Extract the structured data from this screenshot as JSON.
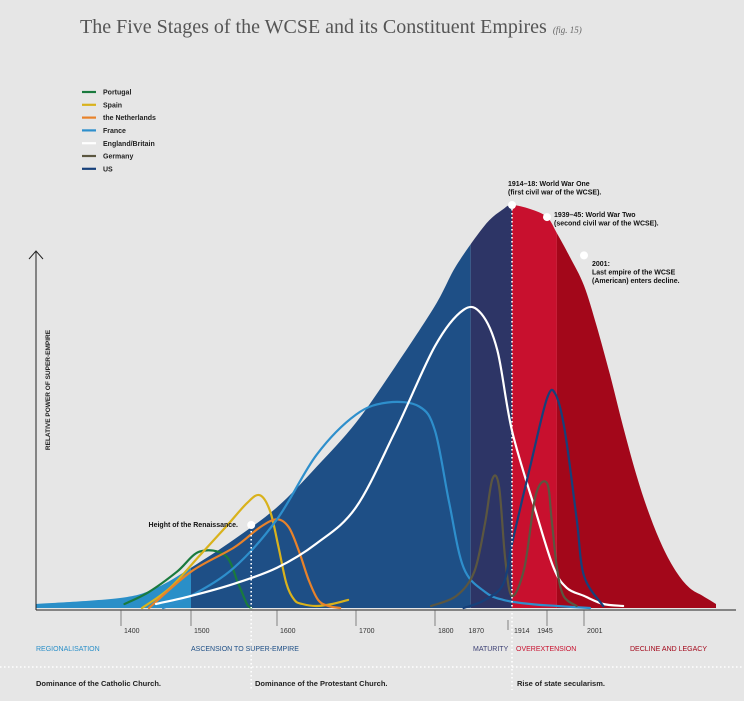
{
  "title": "The Five Stages of the WCSE and its Constituent Empires",
  "fig_ref": "(fig. 15)",
  "ylabel": "RELATIVE POWER OF SUPER-EMPIRE",
  "annotations": [
    {
      "year": 1914,
      "lines": [
        "1914–18: World War One",
        "(first civil war of the WCSE)."
      ]
    },
    {
      "year": 1945,
      "lines": [
        "1939–45: World War Two",
        "(second civil war of the WCSE)."
      ]
    },
    {
      "year": 2001,
      "lines": [
        "2001:",
        "Last empire of the WCSE",
        "(American) enters decline."
      ]
    },
    {
      "year": 1570,
      "lines": [
        "Height of the Renaissance."
      ]
    }
  ],
  "stages": [
    {
      "label": "REGIONALISATION",
      "color": "#2a8fc8"
    },
    {
      "label": "ASCENSION TO SUPER-EMPIRE",
      "color": "#1e4f86"
    },
    {
      "label": "MATURITY",
      "color": "#3b3f73"
    },
    {
      "label": "OVEREXTENSION",
      "color": "#c8102e"
    },
    {
      "label": "DECLINE AND LEGACY",
      "color": "#a3071a"
    }
  ],
  "eras": [
    "Dominance of the Catholic Church.",
    "Dominance of the Protestant Church.",
    "Rise of state secularism."
  ],
  "chart_data": {
    "type": "area",
    "title": "The Five Stages of the WCSE and its Constituent Empires",
    "ylabel": "RELATIVE POWER OF SUPER-EMPIRE",
    "x_ticks": [
      1400,
      1500,
      1600,
      1700,
      1800,
      1870,
      1914,
      1945,
      2001
    ],
    "ylim": [
      0,
      100
    ],
    "grid": false,
    "legend_placement": "top-left",
    "stage_bands": [
      {
        "label": "REGIONALISATION",
        "from": 1300,
        "to": 1500,
        "color": "#2a8fc8"
      },
      {
        "label": "ASCENSION TO SUPER-EMPIRE",
        "from": 1500,
        "to": 1850,
        "color": "#1e4f86"
      },
      {
        "label": "MATURITY",
        "from": 1850,
        "to": 1914,
        "color": "#2d3566"
      },
      {
        "label": "OVEREXTENSION",
        "from": 1914,
        "to": 1960,
        "color": "#c8102e"
      },
      {
        "label": "DECLINE AND LEGACY",
        "from": 1960,
        "to": 2200,
        "color": "#a3071a"
      }
    ],
    "wcse_curve": {
      "x": [
        1300,
        1400,
        1450,
        1500,
        1550,
        1600,
        1650,
        1700,
        1750,
        1800,
        1830,
        1870,
        1900,
        1914,
        1930,
        1945,
        1960,
        1980,
        2001,
        2020,
        2040,
        2060,
        2080,
        2100,
        2120,
        2140,
        2160,
        2180,
        2200
      ],
      "y": [
        1,
        2.5,
        5,
        10,
        17,
        25,
        35,
        46,
        60,
        75,
        85,
        95,
        99,
        100,
        99,
        97,
        93,
        87,
        80,
        70,
        58,
        45,
        33,
        23,
        15,
        9,
        5,
        3,
        1
      ]
    },
    "series": [
      {
        "name": "Portugal",
        "color": "#1a7a3e",
        "x": [
          1405,
          1440,
          1480,
          1510,
          1540,
          1555,
          1565,
          1570
        ],
        "y": [
          1,
          4,
          9,
          14,
          13,
          6,
          1,
          0
        ]
      },
      {
        "name": "Spain",
        "color": "#d9b21c",
        "x": [
          1430,
          1470,
          1510,
          1540,
          1565,
          1580,
          1592,
          1602,
          1612,
          1622,
          1632,
          1650,
          1670,
          1690
        ],
        "y": [
          0,
          5,
          13,
          20,
          26,
          28,
          24,
          15,
          6,
          2,
          1,
          0.5,
          1,
          2
        ]
      },
      {
        "name": "the Netherlands",
        "color": "#e8822a",
        "x": [
          1440,
          1500,
          1550,
          1580,
          1600,
          1615,
          1628,
          1640,
          1652,
          1665,
          1680
        ],
        "y": [
          0,
          9,
          15,
          20,
          22,
          20,
          14,
          7,
          2,
          0.5,
          0
        ]
      },
      {
        "name": "France",
        "color": "#2e8fcc",
        "x": [
          1460,
          1500,
          1550,
          1600,
          1650,
          1700,
          1740,
          1780,
          1800,
          1820,
          1840,
          1870,
          1900,
          1930,
          1960,
          2010
        ],
        "y": [
          0,
          3,
          10,
          22,
          38,
          48,
          51,
          50,
          44,
          26,
          10,
          4,
          2,
          1,
          0.5,
          0
        ]
      },
      {
        "name": "England/Britain",
        "color": "#ffffff",
        "x": [
          1450,
          1500,
          1550,
          1600,
          1650,
          1700,
          1750,
          1800,
          1840,
          1865,
          1890,
          1914,
          1935,
          1955,
          1975,
          2001,
          2030,
          2060
        ],
        "y": [
          1,
          3,
          6,
          10,
          16,
          25,
          44,
          65,
          74,
          73,
          64,
          44,
          24,
          10,
          5,
          3,
          1,
          0.5
        ]
      },
      {
        "name": "Germany",
        "color": "#5b5640",
        "x": [
          1795,
          1830,
          1855,
          1870,
          1882,
          1893,
          1903,
          1914,
          1925,
          1935,
          1945,
          1952,
          1960,
          1970,
          1990
        ],
        "y": [
          0.5,
          3,
          9,
          21,
          32,
          30,
          12,
          3,
          10,
          28,
          31,
          22,
          10,
          3,
          0.5
        ]
      },
      {
        "name": "US",
        "color": "#16407a",
        "x": [
          1840,
          1870,
          1900,
          1914,
          1930,
          1945,
          1958,
          1972,
          1990,
          2001,
          2030
        ],
        "y": [
          0,
          2,
          6,
          16,
          35,
          52,
          53,
          44,
          22,
          8,
          0.5
        ]
      }
    ]
  }
}
